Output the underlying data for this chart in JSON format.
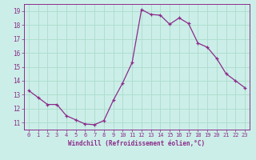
{
  "x": [
    0,
    1,
    2,
    3,
    4,
    5,
    6,
    7,
    8,
    9,
    10,
    11,
    12,
    13,
    14,
    15,
    16,
    17,
    18,
    19,
    20,
    21,
    22,
    23
  ],
  "y": [
    13.3,
    12.8,
    12.3,
    12.3,
    11.5,
    11.2,
    10.9,
    10.85,
    11.15,
    12.6,
    13.85,
    15.3,
    19.1,
    18.75,
    18.7,
    18.05,
    18.5,
    18.1,
    16.7,
    16.4,
    15.6,
    14.5,
    14.0,
    13.5
  ],
  "line_color": "#8b2b8b",
  "marker": "+",
  "bg_color": "#cceee8",
  "grid_color": "#aaddcc",
  "plot_bg": "#cceee8",
  "xlabel": "Windchill (Refroidissement éolien,°C)",
  "ylim": [
    10.5,
    19.5
  ],
  "xlim": [
    -0.5,
    23.5
  ],
  "yticks": [
    11,
    12,
    13,
    14,
    15,
    16,
    17,
    18,
    19
  ],
  "xticks": [
    0,
    1,
    2,
    3,
    4,
    5,
    6,
    7,
    8,
    9,
    10,
    11,
    12,
    13,
    14,
    15,
    16,
    17,
    18,
    19,
    20,
    21,
    22,
    23
  ],
  "tick_color": "#8b2b8b",
  "label_color": "#8b2b8b",
  "spine_color": "#8b2b8b",
  "tick_fontsize": 5.0,
  "xlabel_fontsize": 5.5,
  "marker_size": 3.5,
  "line_width": 0.9
}
